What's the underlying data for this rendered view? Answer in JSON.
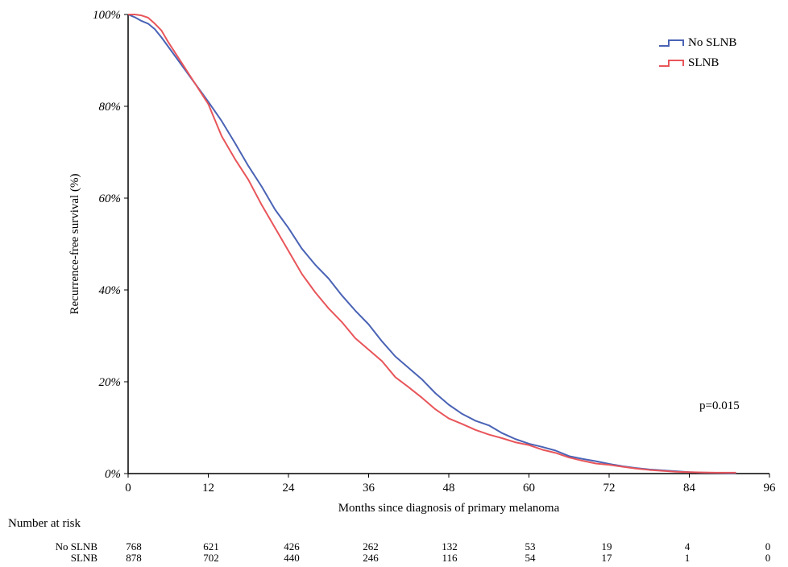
{
  "chart_data": {
    "type": "line",
    "title": "",
    "xlabel": "Months since diagnosis of primary melanoma",
    "ylabel": "Recurrence-free survival (%)",
    "xlim": [
      0,
      96
    ],
    "ylim": [
      0,
      100
    ],
    "x_ticks": [
      0,
      12,
      24,
      36,
      48,
      60,
      72,
      84,
      96
    ],
    "x_tick_labels": [
      "0",
      "12",
      "24",
      "36",
      "48",
      "60",
      "72",
      "84",
      "96"
    ],
    "y_ticks": [
      0,
      20,
      40,
      60,
      80,
      100
    ],
    "y_tick_labels": [
      "0%",
      "20%",
      "40%",
      "60%",
      "80%",
      "100%"
    ],
    "grid": false,
    "legend_position": "top-right",
    "annotation": "p=0.015",
    "colors": {
      "No SLNB": "#4a63b5",
      "SLNB": "#e8555a"
    },
    "series": [
      {
        "name": "No SLNB",
        "x": [
          0,
          1,
          2,
          3,
          4,
          5,
          6,
          8,
          10,
          12,
          14,
          16,
          18,
          20,
          22,
          24,
          26,
          28,
          30,
          32,
          34,
          36,
          38,
          40,
          42,
          44,
          46,
          48,
          50,
          52,
          54,
          56,
          58,
          60,
          62,
          64,
          66,
          68,
          70,
          72,
          74,
          76,
          78,
          80,
          82,
          84,
          86,
          88,
          90,
          91
        ],
        "y": [
          100,
          99.4,
          98.6,
          98.0,
          96.8,
          95.0,
          93.0,
          89.0,
          85.0,
          81.0,
          76.8,
          72.0,
          67.0,
          62.5,
          57.5,
          53.5,
          49.0,
          45.5,
          42.5,
          38.8,
          35.5,
          32.5,
          28.8,
          25.5,
          23.0,
          20.5,
          17.5,
          15.0,
          13.0,
          11.5,
          10.5,
          8.8,
          7.5,
          6.5,
          5.8,
          5.0,
          3.8,
          3.2,
          2.7,
          2.1,
          1.6,
          1.2,
          0.9,
          0.7,
          0.5,
          0.3,
          0.2,
          0.15,
          0.1,
          0.1
        ]
      },
      {
        "name": "SLNB",
        "x": [
          0,
          1,
          2,
          3,
          4,
          5,
          6,
          8,
          10,
          12,
          14,
          16,
          18,
          20,
          22,
          24,
          26,
          28,
          30,
          32,
          34,
          36,
          38,
          40,
          42,
          44,
          46,
          48,
          50,
          52,
          54,
          56,
          58,
          60,
          62,
          64,
          66,
          68,
          70,
          72,
          74,
          76,
          78,
          80,
          82,
          84,
          86,
          88,
          90,
          91
        ],
        "y": [
          100,
          100,
          99.8,
          99.3,
          98.0,
          96.5,
          94.0,
          89.5,
          85.0,
          80.5,
          73.5,
          68.5,
          64.0,
          58.5,
          53.5,
          48.5,
          43.5,
          39.5,
          36.0,
          33.0,
          29.5,
          27.0,
          24.5,
          21.0,
          18.8,
          16.5,
          14.0,
          12.0,
          10.8,
          9.5,
          8.5,
          7.7,
          6.8,
          6.2,
          5.2,
          4.5,
          3.5,
          2.8,
          2.2,
          1.9,
          1.5,
          1.1,
          0.8,
          0.6,
          0.4,
          0.3,
          0.25,
          0.2,
          0.2,
          0.2
        ]
      }
    ],
    "number_at_risk": {
      "title": "Number at risk",
      "timepoints": [
        0,
        12,
        24,
        36,
        48,
        60,
        72,
        84,
        96
      ],
      "rows": [
        {
          "label": "No SLNB",
          "values": [
            "768",
            "621",
            "426",
            "262",
            "132",
            "53",
            "19",
            "4",
            "0"
          ]
        },
        {
          "label": "SLNB",
          "values": [
            "878",
            "702",
            "440",
            "246",
            "116",
            "54",
            "17",
            "1",
            "0"
          ]
        }
      ]
    }
  }
}
